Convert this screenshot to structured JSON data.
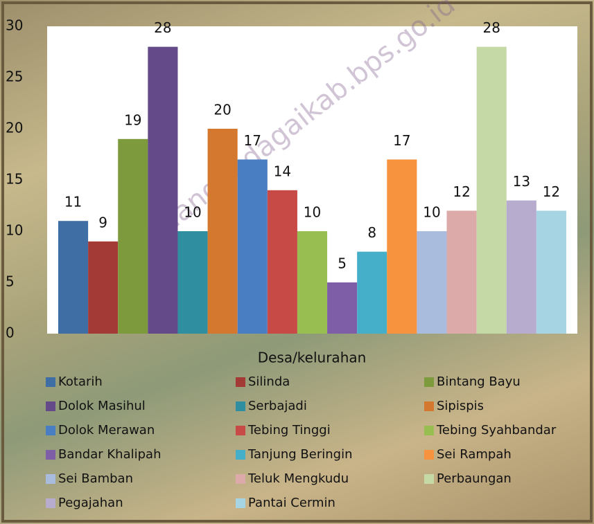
{
  "watermark": "serdangbedagaikab.bps.go.id",
  "chart_data": {
    "type": "bar",
    "xlabel": "Desa/kelurahan",
    "ylim": [
      0,
      30
    ],
    "yticks": [
      0,
      5,
      10,
      15,
      20,
      25,
      30
    ],
    "grid": false,
    "series": [
      {
        "name": "Kotarih",
        "color": "#3f6ea5",
        "values": [
          11
        ]
      },
      {
        "name": "Silinda",
        "color": "#a33a36",
        "values": [
          9
        ]
      },
      {
        "name": "Bintang Bayu",
        "color": "#7d9a3c",
        "values": [
          19
        ]
      },
      {
        "name": "Dolok Masihul",
        "color": "#654a89",
        "values": [
          28
        ]
      },
      {
        "name": "Serbajadi",
        "color": "#2f8fa1",
        "values": [
          10
        ]
      },
      {
        "name": "Sipispis",
        "color": "#d5782f",
        "values": [
          20
        ]
      },
      {
        "name": "Dolok Merawan",
        "color": "#4a7ec2",
        "values": [
          17
        ]
      },
      {
        "name": "Tebing Tinggi",
        "color": "#c74a47",
        "values": [
          14
        ]
      },
      {
        "name": "Tebing Syahbandar",
        "color": "#98bd50",
        "values": [
          10
        ]
      },
      {
        "name": "Bandar Khalipah",
        "color": "#7e5ea7",
        "values": [
          5
        ]
      },
      {
        "name": "Tanjung Beringin",
        "color": "#45aec8",
        "values": [
          8
        ]
      },
      {
        "name": "Sei Rampah",
        "color": "#f7933e",
        "values": [
          17
        ]
      },
      {
        "name": "Sei Bamban",
        "color": "#a9bcdd",
        "values": [
          10
        ]
      },
      {
        "name": "Teluk Mengkudu",
        "color": "#ddaaaa",
        "values": [
          12
        ]
      },
      {
        "name": "Perbaungan",
        "color": "#c5d9a6",
        "values": [
          28
        ]
      },
      {
        "name": "Pegajahan",
        "color": "#b7acce",
        "values": [
          13
        ]
      },
      {
        "name": "Pantai Cermin",
        "color": "#a7d4e2",
        "values": [
          12
        ]
      }
    ]
  }
}
